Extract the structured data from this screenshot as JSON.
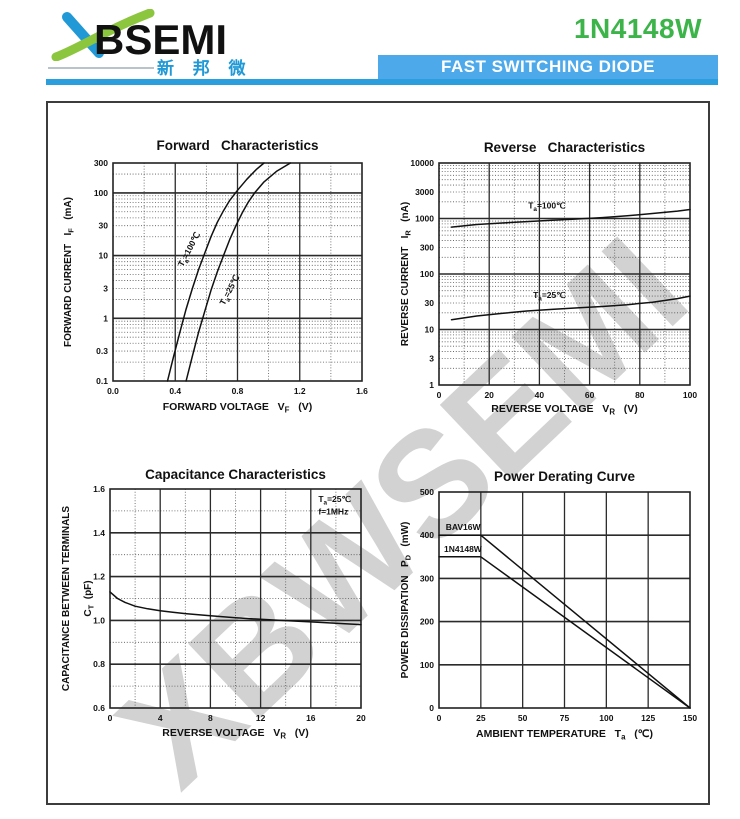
{
  "header": {
    "logo_text": "XBSEMI",
    "logo_subtext": "新 邦 微",
    "part_number": "1N4148W",
    "banner_title": "FAST SWITCHING DIODE",
    "colors": {
      "logo_blue": "#2099d6",
      "logo_green": "#8cc63f",
      "part_green": "#3cb44a",
      "banner_blue": "#4da9ea",
      "underline_blue": "#2b9fdd"
    }
  },
  "watermark": "XBWSEMI",
  "chart_data": [
    {
      "id": "forward",
      "type": "line",
      "title": "Forward   Characteristics",
      "x": {
        "scale": "linear",
        "min": 0,
        "max": 1.6,
        "title": "FORWARD VOLTAGE   V_{F}   (V)",
        "ticks": [
          {
            "v": 0,
            "t": "0.0"
          },
          {
            "v": 0.4,
            "t": "0.4"
          },
          {
            "v": 0.8,
            "t": "0.8"
          },
          {
            "v": 1.2,
            "t": "1.2"
          },
          {
            "v": 1.6,
            "t": "1.6"
          }
        ],
        "solid": [
          0.4,
          0.8,
          1.2
        ],
        "dotted": [
          0.2,
          0.6,
          1.0,
          1.4
        ]
      },
      "y": {
        "scale": "log",
        "min": 0.1,
        "max": 300,
        "title_lines": [
          "FORWARD CURRENT   I_{F}   (mA)"
        ],
        "ticks": [
          {
            "v": 300,
            "t": "300"
          },
          {
            "v": 100,
            "t": "100"
          },
          {
            "v": 30,
            "t": "30"
          },
          {
            "v": 10,
            "t": "10"
          },
          {
            "v": 3,
            "t": "3"
          },
          {
            "v": 1,
            "t": "1"
          },
          {
            "v": 0.3,
            "t": "0.3"
          },
          {
            "v": 0.1,
            "t": "0.1"
          }
        ],
        "solid": [
          1,
          10,
          100
        ]
      },
      "series": [
        {
          "name": "Ta=100℃",
          "points": [
            [
              0.35,
              0.1
            ],
            [
              0.39,
              0.25
            ],
            [
              0.43,
              0.6
            ],
            [
              0.47,
              1.4
            ],
            [
              0.51,
              3
            ],
            [
              0.55,
              6
            ],
            [
              0.59,
              11
            ],
            [
              0.63,
              20
            ],
            [
              0.67,
              34
            ],
            [
              0.71,
              52
            ],
            [
              0.75,
              76
            ],
            [
              0.8,
              110
            ],
            [
              0.86,
              165
            ],
            [
              0.92,
              235
            ],
            [
              0.97,
              300
            ]
          ]
        },
        {
          "name": "Ta=25℃",
          "points": [
            [
              0.47,
              0.1
            ],
            [
              0.51,
              0.25
            ],
            [
              0.55,
              0.6
            ],
            [
              0.59,
              1.3
            ],
            [
              0.63,
              2.8
            ],
            [
              0.67,
              5.5
            ],
            [
              0.71,
              10
            ],
            [
              0.75,
              18
            ],
            [
              0.79,
              30
            ],
            [
              0.83,
              48
            ],
            [
              0.87,
              72
            ],
            [
              0.91,
              100
            ],
            [
              0.97,
              150
            ],
            [
              1.05,
              220
            ],
            [
              1.14,
              300
            ]
          ]
        }
      ],
      "annotations": [
        {
          "text": "T_{a}=100℃",
          "x": 0.505,
          "y": 12,
          "rotate": -62,
          "anchor": "middle"
        },
        {
          "text": "T_{a}=25℃",
          "x": 0.765,
          "y": 2.7,
          "rotate": -62,
          "anchor": "middle"
        }
      ]
    },
    {
      "id": "reverse",
      "type": "line",
      "title": "Reverse   Characteristics",
      "x": {
        "scale": "linear",
        "min": 0,
        "max": 100,
        "title": "REVERSE VOLTAGE   V_{R}   (V)",
        "ticks": [
          {
            "v": 0,
            "t": "0"
          },
          {
            "v": 20,
            "t": "20"
          },
          {
            "v": 40,
            "t": "40"
          },
          {
            "v": 60,
            "t": "60"
          },
          {
            "v": 80,
            "t": "80"
          },
          {
            "v": 100,
            "t": "100"
          }
        ],
        "solid": [
          20,
          40,
          60,
          80
        ],
        "dotted": [
          10,
          30,
          50,
          70,
          90
        ]
      },
      "y": {
        "scale": "log",
        "min": 1,
        "max": 10000,
        "title_lines": [
          "REVERSE CURRENT   I_{R}   (nA)"
        ],
        "ticks": [
          {
            "v": 10000,
            "t": "10000"
          },
          {
            "v": 3000,
            "t": "3000"
          },
          {
            "v": 1000,
            "t": "1000"
          },
          {
            "v": 300,
            "t": "300"
          },
          {
            "v": 100,
            "t": "100"
          },
          {
            "v": 30,
            "t": "30"
          },
          {
            "v": 10,
            "t": "10"
          },
          {
            "v": 3,
            "t": "3"
          },
          {
            "v": 1,
            "t": "1"
          }
        ],
        "solid": [
          10,
          100,
          1000
        ]
      },
      "series": [
        {
          "name": "Ta=100℃",
          "points": [
            [
              5,
              700
            ],
            [
              15,
              780
            ],
            [
              25,
              830
            ],
            [
              35,
              880
            ],
            [
              45,
              930
            ],
            [
              55,
              980
            ],
            [
              65,
              1040
            ],
            [
              75,
              1120
            ],
            [
              85,
              1230
            ],
            [
              95,
              1360
            ],
            [
              100,
              1450
            ]
          ]
        },
        {
          "name": "Ta=25℃",
          "points": [
            [
              5,
              15
            ],
            [
              15,
              17.5
            ],
            [
              25,
              19.5
            ],
            [
              35,
              21.5
            ],
            [
              45,
              23
            ],
            [
              55,
              24.5
            ],
            [
              65,
              26
            ],
            [
              75,
              28
            ],
            [
              85,
              31
            ],
            [
              95,
              36
            ],
            [
              100,
              40
            ]
          ]
        }
      ],
      "annotations": [
        {
          "text": "T_{a}=100℃",
          "x": 43,
          "y": 1500,
          "anchor": "middle"
        },
        {
          "text": "T_{a}=25℃",
          "x": 44,
          "y": 37,
          "anchor": "middle"
        }
      ]
    },
    {
      "id": "capacitance",
      "type": "line",
      "title": "Capacitance Characteristics",
      "x": {
        "scale": "linear",
        "min": 0,
        "max": 20,
        "title": "REVERSE VOLTAGE   V_{R}   (V)",
        "ticks": [
          {
            "v": 0,
            "t": "0"
          },
          {
            "v": 4,
            "t": "4"
          },
          {
            "v": 8,
            "t": "8"
          },
          {
            "v": 12,
            "t": "12"
          },
          {
            "v": 16,
            "t": "16"
          },
          {
            "v": 20,
            "t": "20"
          }
        ],
        "solid": [
          4,
          8,
          12,
          16
        ],
        "dotted": [
          2,
          6,
          10,
          14,
          18
        ]
      },
      "y": {
        "scale": "linear",
        "min": 0.6,
        "max": 1.6,
        "title_lines": [
          "CAPACITANCE BETWEEN TERMINALS",
          "C_{T}  (pF)"
        ],
        "ticks": [
          {
            "v": 1.6,
            "t": "1.6"
          },
          {
            "v": 1.4,
            "t": "1.4"
          },
          {
            "v": 1.2,
            "t": "1.2"
          },
          {
            "v": 1.0,
            "t": "1.0"
          },
          {
            "v": 0.8,
            "t": "0.8"
          },
          {
            "v": 0.6,
            "t": "0.6"
          }
        ],
        "solid": [
          0.8,
          1.0,
          1.2,
          1.4
        ],
        "dotted": [
          0.7,
          0.9,
          1.1,
          1.3,
          1.5
        ]
      },
      "series": [
        {
          "name": "CT",
          "points": [
            [
              0,
              1.13
            ],
            [
              0.6,
              1.1
            ],
            [
              1.2,
              1.082
            ],
            [
              2,
              1.065
            ],
            [
              3,
              1.053
            ],
            [
              4,
              1.044
            ],
            [
              5,
              1.037
            ],
            [
              6,
              1.031
            ],
            [
              8,
              1.021
            ],
            [
              10,
              1.012
            ],
            [
              12,
              1.005
            ],
            [
              14,
              0.999
            ],
            [
              16,
              0.993
            ],
            [
              18,
              0.987
            ],
            [
              20,
              0.981
            ]
          ]
        }
      ],
      "annotations": [
        {
          "text": "T_{a}=25℃",
          "x": 16.6,
          "y": 1.54,
          "anchor": "start"
        },
        {
          "text": "f=1MHz",
          "x": 16.6,
          "y": 1.483,
          "anchor": "start"
        }
      ]
    },
    {
      "id": "power",
      "type": "line",
      "title": "Power Derating Curve",
      "x": {
        "scale": "linear",
        "min": 0,
        "max": 150,
        "title": "AMBIENT TEMPERATURE   T_{a}   (℃)",
        "ticks": [
          {
            "v": 0,
            "t": "0"
          },
          {
            "v": 25,
            "t": "25"
          },
          {
            "v": 50,
            "t": "50"
          },
          {
            "v": 75,
            "t": "75"
          },
          {
            "v": 100,
            "t": "100"
          },
          {
            "v": 125,
            "t": "125"
          },
          {
            "v": 150,
            "t": "150"
          }
        ],
        "solid": [
          25,
          50,
          75,
          100,
          125
        ],
        "dotted": []
      },
      "y": {
        "scale": "linear",
        "min": 0,
        "max": 500,
        "title_lines": [
          "POWER DISSIPATION   P_{D}   (mW)"
        ],
        "ticks": [
          {
            "v": 500,
            "t": "500"
          },
          {
            "v": 400,
            "t": "400"
          },
          {
            "v": 300,
            "t": "300"
          },
          {
            "v": 200,
            "t": "200"
          },
          {
            "v": 100,
            "t": "100"
          },
          {
            "v": 0,
            "t": "0"
          }
        ],
        "solid": [
          100,
          200,
          300,
          400
        ],
        "dotted": []
      },
      "series": [
        {
          "name": "BAV16W",
          "points": [
            [
              0,
              400
            ],
            [
              25,
              400
            ],
            [
              150,
              0
            ]
          ]
        },
        {
          "name": "1N4148W",
          "points": [
            [
              0,
              350
            ],
            [
              25,
              350
            ],
            [
              150,
              0
            ]
          ]
        }
      ],
      "annotations": [
        {
          "text": "BAV16W",
          "x": 4,
          "y": 412,
          "anchor": "start"
        },
        {
          "text": "1N4148W",
          "x": 3,
          "y": 361,
          "anchor": "start"
        }
      ]
    }
  ]
}
